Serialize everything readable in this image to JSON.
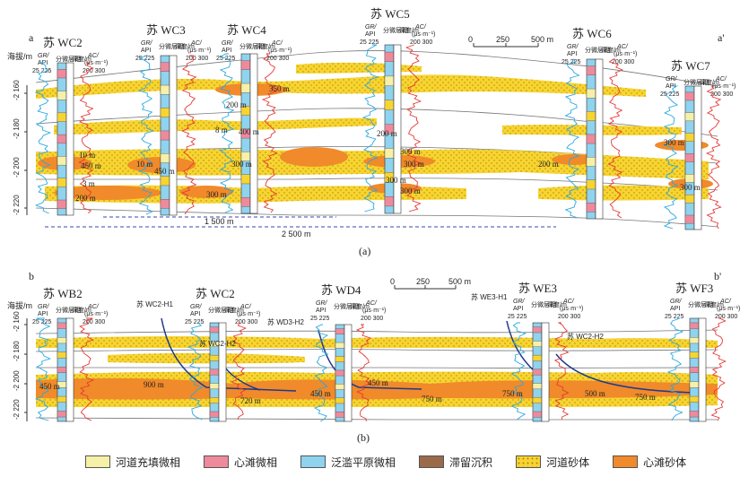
{
  "panel_a": {
    "caption": "(a)",
    "section_start": "a",
    "section_end": "a'",
    "elev_axis": "海拔/m",
    "elev_ticks": [
      "-2 160",
      "-2 180",
      "-2 200",
      "-2 220"
    ],
    "scale": {
      "zero": "0",
      "mid": "250",
      "end": "500 m"
    },
    "spacing_1": "1 500 m",
    "spacing_2": "2 500 m",
    "wells": [
      {
        "name": "苏 WC2"
      },
      {
        "name": "苏 WC3"
      },
      {
        "name": "苏 WC4"
      },
      {
        "name": "苏 WC5"
      },
      {
        "name": "苏 WC6"
      },
      {
        "name": "苏 WC7"
      }
    ],
    "sand_labels": [
      "10 m",
      "450 m",
      "3 m",
      "200 m",
      "10 m",
      "450 m",
      "300 m",
      "350 m",
      "200 m",
      "400 m",
      "300 m",
      "8 m",
      "200 m",
      "300 m",
      "300 m",
      "300 m",
      "300 m",
      "200 m",
      "300 m",
      "300 m"
    ]
  },
  "panel_b": {
    "caption": "(b)",
    "section_start": "b",
    "section_end": "b'",
    "elev_axis": "海拔/m",
    "elev_ticks": [
      "-2 160",
      "-2 180",
      "-2 200",
      "-2 220"
    ],
    "scale": {
      "zero": "0",
      "mid": "250",
      "end": "500 m"
    },
    "wells": [
      {
        "name": "苏 WB2"
      },
      {
        "name": "苏 WC2"
      },
      {
        "name": "苏 WD4"
      },
      {
        "name": "苏 WE3"
      },
      {
        "name": "苏 WF3"
      }
    ],
    "horizontal_wells": [
      "苏 WC2-H1",
      "苏 WC2-H2",
      "苏 WD3-H2",
      "苏 WE3-H1",
      "苏 WC2-H2"
    ],
    "sand_labels": [
      "450 m",
      "900 m",
      "720 m",
      "450 m",
      "450 m",
      "750 m",
      "750 m",
      "500 m",
      "750 m"
    ]
  },
  "log_header": {
    "gr": "GR/",
    "api": "API",
    "gr_range": "25 225",
    "facies": "分微层相",
    "depth": "深度/m",
    "ac": "AC/",
    "ac_unit": "(μs·m⁻¹)",
    "ac_range": "200 300"
  },
  "legend": [
    {
      "label": "河道充填微相",
      "color": "#f6f0a8"
    },
    {
      "label": "心滩微相",
      "color": "#ee8a9c"
    },
    {
      "label": "泛滥平原微相",
      "color": "#8fd3ee"
    },
    {
      "label": "滞留沉积",
      "color": "#9a6a4a"
    },
    {
      "label": "河道砂体",
      "color": "#f7d431"
    },
    {
      "label": "心滩砂体",
      "color": "#f08a2a"
    }
  ]
}
